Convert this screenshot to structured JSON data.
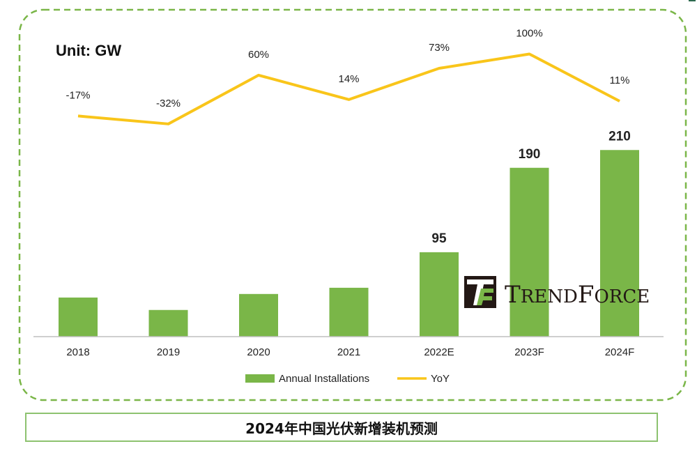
{
  "unit_label": "Unit: GW",
  "caption": "2024年中国光伏新增装机预测",
  "watermark": {
    "logo_letter": "TF",
    "text_big_1": "T",
    "text_small_1": "REND",
    "text_big_2": "F",
    "text_small_2": "ORCE"
  },
  "colors": {
    "bar": "#7ab648",
    "line": "#f9c51a",
    "frame_dash": "#7ab648",
    "caption_border": "#8dc26f",
    "axis": "#bfbfbf",
    "logo_dark": "#231815",
    "logo_green": "#7ab648"
  },
  "chart_data": {
    "type": "bar",
    "categories": [
      "2018",
      "2019",
      "2020",
      "2021",
      "2022E",
      "2023F",
      "2024F"
    ],
    "series": [
      {
        "name": "Annual Installations",
        "type": "bar",
        "values": [
          44,
          30,
          48,
          55,
          95,
          190,
          210
        ],
        "data_labels": [
          "",
          "",
          "",
          "",
          "95",
          "190",
          "210"
        ]
      },
      {
        "name": "YoY",
        "type": "line",
        "values": [
          -17,
          -32,
          60,
          14,
          73,
          100,
          11
        ],
        "data_labels": [
          "-17%",
          "-32%",
          "60%",
          "14%",
          "73%",
          "100%",
          "11%"
        ]
      }
    ],
    "ylabel": "Unit: GW",
    "ylim_bar": [
      0,
      240
    ],
    "ylim_line": [
      -40,
      110
    ],
    "legend": "bottom",
    "grid": false
  }
}
